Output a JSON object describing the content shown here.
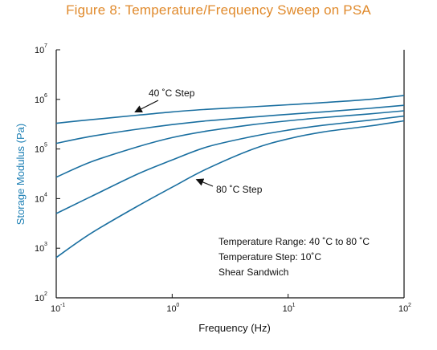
{
  "title": "Figure 8: Temperature/Frequency Sweep on PSA",
  "colors": {
    "title": "#e08a2c",
    "series": "#1a6fa0",
    "ylabel": "#1c7fb4",
    "axis": "#111111"
  },
  "chart_data": {
    "type": "line",
    "title": "Figure 8: Temperature/Frequency Sweep on PSA",
    "xlabel": "Frequency (Hz)",
    "ylabel": "Storage Modulus (Pa)",
    "xscale": "log",
    "yscale": "log",
    "xlim": [
      0.1,
      100
    ],
    "ylim": [
      100,
      10000000
    ],
    "grid": false,
    "x_ticks": [
      {
        "base": "10",
        "exp": "-1",
        "value": 0.1
      },
      {
        "base": "10",
        "exp": "0",
        "value": 1
      },
      {
        "base": "10",
        "exp": "1",
        "value": 10
      },
      {
        "base": "10",
        "exp": "2",
        "value": 100
      }
    ],
    "y_ticks": [
      {
        "base": "10",
        "exp": "2",
        "value": 100
      },
      {
        "base": "10",
        "exp": "3",
        "value": 1000
      },
      {
        "base": "10",
        "exp": "4",
        "value": 10000
      },
      {
        "base": "10",
        "exp": "5",
        "value": 100000
      },
      {
        "base": "10",
        "exp": "6",
        "value": 1000000
      },
      {
        "base": "10",
        "exp": "7",
        "value": 10000000
      }
    ],
    "x": [
      0.1,
      0.2,
      0.5,
      1,
      2,
      5,
      10,
      20,
      50,
      100
    ],
    "series": [
      {
        "values": [
          330000,
          390000,
          480000,
          560000,
          630000,
          710000,
          780000,
          860000,
          1000000,
          1200000
        ]
      },
      {
        "values": [
          130000,
          180000,
          250000,
          310000,
          370000,
          440000,
          500000,
          560000,
          660000,
          760000
        ]
      },
      {
        "values": [
          27000,
          55000,
          110000,
          170000,
          230000,
          310000,
          370000,
          430000,
          510000,
          590000
        ]
      },
      {
        "values": [
          5000,
          11000,
          31000,
          60000,
          110000,
          180000,
          240000,
          300000,
          380000,
          460000
        ]
      },
      {
        "values": [
          650,
          2000,
          7000,
          17000,
          40000,
          100000,
          160000,
          220000,
          290000,
          370000
        ]
      }
    ],
    "annotations": [
      {
        "text": "40 ˚C Step",
        "x": 0.45,
        "y": 480000
      },
      {
        "text": "80 ˚C Step",
        "x": 1.5,
        "y": 27000
      }
    ],
    "legend_text": [
      "Temperature Range: 40 ˚C to 80 ˚C",
      "Temperature Step: 10˚C",
      "Shear Sandwich"
    ],
    "legend_placement": "bottom-right"
  }
}
